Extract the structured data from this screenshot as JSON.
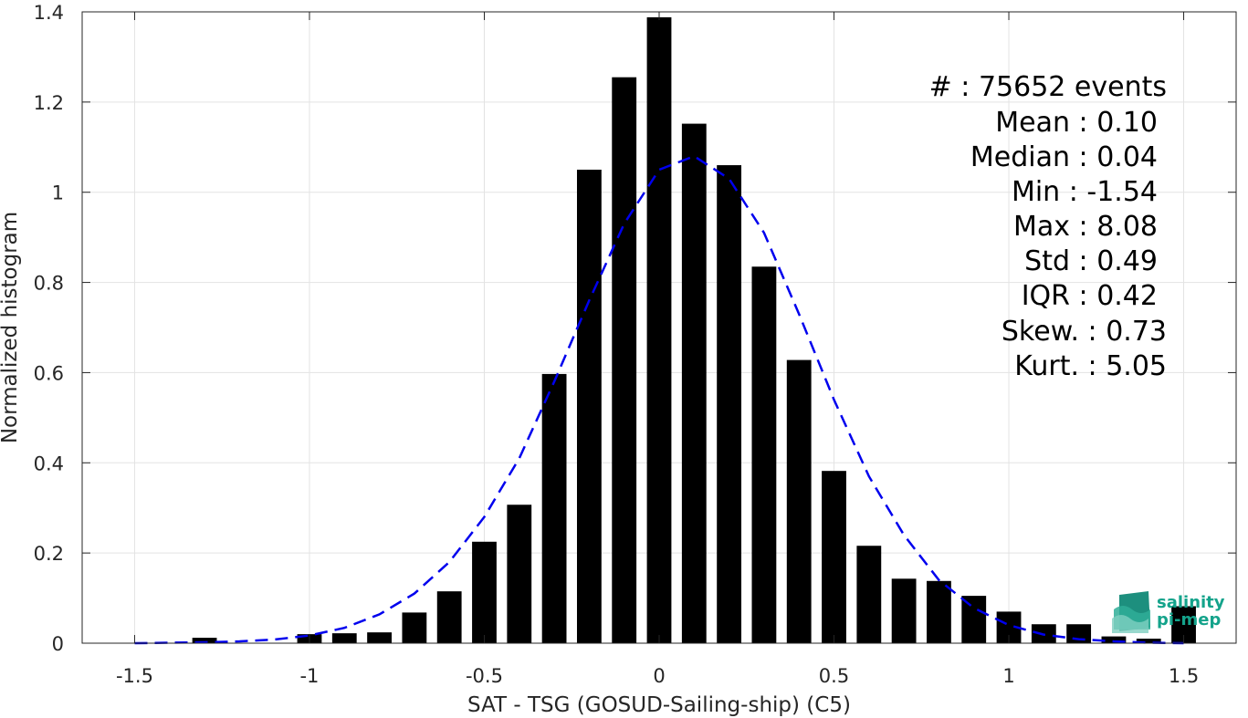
{
  "chart_data": {
    "type": "bar",
    "xlabel": "SAT - TSG (GOSUD-Sailing-ship) (C5)",
    "ylabel": "Normalized histogram",
    "xlim": [
      -1.65,
      1.65
    ],
    "ylim": [
      0,
      1.4
    ],
    "xticks": [
      -1.5,
      -1,
      -0.5,
      0,
      0.5,
      1,
      1.5
    ],
    "xtick_labels": [
      "-1.5",
      "-1",
      "-0.5",
      "0",
      "0.5",
      "1",
      "1.5"
    ],
    "yticks": [
      0,
      0.2,
      0.4,
      0.6,
      0.8,
      1,
      1.2,
      1.4
    ],
    "ytick_labels": [
      "0",
      "0.2",
      "0.4",
      "0.6",
      "0.8",
      "1",
      "1.2",
      "1.4"
    ],
    "grid": true,
    "bar_width": 0.07,
    "bars": [
      {
        "x": -1.3,
        "y": 0.012
      },
      {
        "x": -1.0,
        "y": 0.02
      },
      {
        "x": -0.9,
        "y": 0.022
      },
      {
        "x": -0.8,
        "y": 0.024
      },
      {
        "x": -0.7,
        "y": 0.068
      },
      {
        "x": -0.6,
        "y": 0.115
      },
      {
        "x": -0.5,
        "y": 0.225
      },
      {
        "x": -0.4,
        "y": 0.307
      },
      {
        "x": -0.3,
        "y": 0.597
      },
      {
        "x": -0.2,
        "y": 1.05
      },
      {
        "x": -0.1,
        "y": 1.255
      },
      {
        "x": 0.0,
        "y": 1.388
      },
      {
        "x": 0.1,
        "y": 1.152
      },
      {
        "x": 0.2,
        "y": 1.06
      },
      {
        "x": 0.3,
        "y": 0.835
      },
      {
        "x": 0.4,
        "y": 0.628
      },
      {
        "x": 0.5,
        "y": 0.382
      },
      {
        "x": 0.6,
        "y": 0.216
      },
      {
        "x": 0.7,
        "y": 0.143
      },
      {
        "x": 0.8,
        "y": 0.138
      },
      {
        "x": 0.9,
        "y": 0.105
      },
      {
        "x": 1.0,
        "y": 0.07
      },
      {
        "x": 1.1,
        "y": 0.042
      },
      {
        "x": 1.2,
        "y": 0.042
      },
      {
        "x": 1.3,
        "y": 0.015
      },
      {
        "x": 1.4,
        "y": 0.01
      },
      {
        "x": 1.5,
        "y": 0.082
      }
    ],
    "fit_curve": {
      "style": "dashed",
      "color": "#0000ee",
      "x": [
        -1.5,
        -1.4,
        -1.3,
        -1.2,
        -1.1,
        -1.0,
        -0.9,
        -0.8,
        -0.7,
        -0.6,
        -0.5,
        -0.4,
        -0.3,
        -0.2,
        -0.1,
        0.0,
        0.1,
        0.2,
        0.3,
        0.4,
        0.5,
        0.6,
        0.7,
        0.8,
        0.9,
        1.0,
        1.1,
        1.2,
        1.3,
        1.4,
        1.5
      ],
      "y": [
        0.0,
        0.001,
        0.002,
        0.004,
        0.008,
        0.017,
        0.034,
        0.064,
        0.11,
        0.18,
        0.28,
        0.41,
        0.58,
        0.76,
        0.93,
        1.05,
        1.08,
        1.03,
        0.91,
        0.73,
        0.54,
        0.37,
        0.24,
        0.14,
        0.078,
        0.04,
        0.019,
        0.009,
        0.004,
        0.001,
        0.0
      ]
    },
    "bar_color": "#000000",
    "stats_lines": [
      "#  : 75652 events",
      "Mean : 0.10",
      "Median : 0.04",
      "Min : -1.54",
      "Max : 8.08",
      "Std : 0.49",
      "IQR : 0.42",
      "Skew. : 0.73",
      "Kurt. : 5.05"
    ],
    "logo": {
      "line1": "salinity",
      "line2": "pi-mep",
      "color": "#14a38b"
    }
  }
}
